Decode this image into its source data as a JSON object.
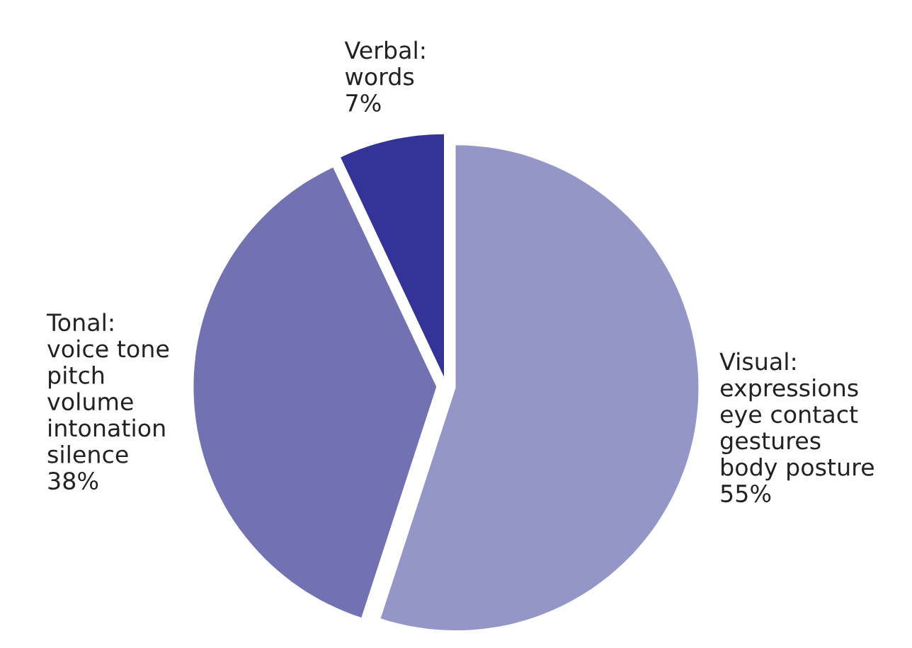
{
  "chart_data": {
    "type": "pie",
    "categories": [
      "Visual:\nexpressions\neye contact\ngestures\nbody posture",
      "Tonal:\nvoice tone\npitch\nvolume\nintonation\nsilence",
      "Verbal:\nwords"
    ],
    "values": [
      55,
      38,
      7
    ],
    "value_labels": [
      "55%",
      "38%",
      "7%"
    ],
    "colors": [
      "#9596c8",
      "#7272b3",
      "#333399"
    ],
    "legend": false
  }
}
